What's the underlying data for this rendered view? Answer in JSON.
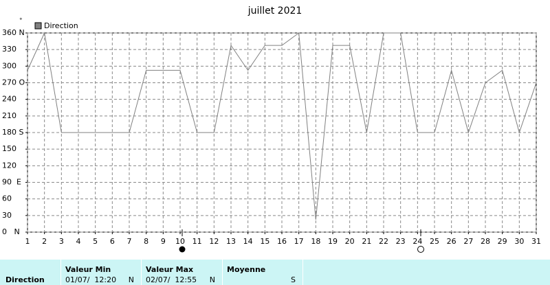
{
  "chart_data": {
    "type": "line",
    "title": "juillet 2021",
    "y_label": "°",
    "x": [
      1,
      2,
      3,
      4,
      5,
      6,
      7,
      8,
      9,
      10,
      11,
      12,
      13,
      14,
      15,
      16,
      17,
      18,
      19,
      20,
      21,
      22,
      23,
      24,
      25,
      26,
      27,
      28,
      29,
      30,
      31
    ],
    "series": [
      {
        "name": "Direction",
        "color": "#808080",
        "values": [
          292.5,
          360,
          180,
          180,
          180,
          180,
          180,
          292.5,
          292.5,
          292.5,
          180,
          180,
          337.5,
          292.5,
          337.5,
          337.5,
          360,
          22.5,
          337.5,
          337.5,
          180,
          360,
          360,
          180,
          180,
          292.5,
          180,
          270,
          292.5,
          180,
          270
        ]
      }
    ],
    "xlim": [
      1,
      31
    ],
    "xticks": [
      1,
      2,
      3,
      4,
      5,
      6,
      7,
      8,
      9,
      10,
      11,
      12,
      13,
      14,
      15,
      16,
      17,
      18,
      19,
      20,
      21,
      22,
      23,
      24,
      25,
      26,
      27,
      28,
      29,
      30,
      31
    ],
    "ylim": [
      0,
      360
    ],
    "yticks": [
      {
        "value": 360,
        "label": "360 N"
      },
      330,
      300,
      {
        "value": 270,
        "label": "270 O"
      },
      240,
      210,
      {
        "value": 180,
        "label": "180 S"
      },
      150,
      120,
      {
        "value": 90,
        "label": "90  E"
      },
      60,
      30,
      {
        "value": 0,
        "label": "0   N"
      }
    ],
    "grid": true
  },
  "summary_table": {
    "row_label": "Direction",
    "columns": [
      {
        "header": "Valeur Min",
        "value": "01/07/  12:20",
        "dir": "N"
      },
      {
        "header": "Valeur Max",
        "value": "02/07/  12:55",
        "dir": "N"
      },
      {
        "header": "Moyenne",
        "dir": "S"
      }
    ]
  }
}
